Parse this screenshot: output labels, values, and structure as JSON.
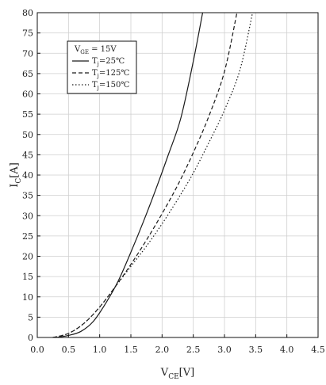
{
  "chart_data": {
    "type": "line",
    "title": "",
    "xlabel": {
      "main": "V",
      "sub": "CE",
      "unit": "[V]"
    },
    "ylabel": {
      "main": "I",
      "sub": "C",
      "unit": "[A]"
    },
    "xlim": [
      0,
      4.5
    ],
    "ylim": [
      0,
      80
    ],
    "x_ticks": [
      "0.0",
      "0.5",
      "1.0",
      "1.5",
      "2.0",
      "2.5",
      "3.0",
      "3.5",
      "4.0",
      "4.5"
    ],
    "y_ticks": [
      "0",
      "5",
      "10",
      "15",
      "20",
      "25",
      "30",
      "35",
      "40",
      "45",
      "50",
      "55",
      "60",
      "65",
      "70",
      "75",
      "80"
    ],
    "grid": true,
    "legend_position": "top-left",
    "legend_header": {
      "main": "V",
      "sub": "GE",
      "rest": " = 15V"
    },
    "series": [
      {
        "name": "Tj=25℃",
        "label": {
          "main": "T",
          "sub": "j",
          "rest": "=25℃"
        },
        "style": "solid",
        "color": "#1a1a1a",
        "points": [
          [
            0.3,
            0
          ],
          [
            0.5,
            0.5
          ],
          [
            0.7,
            1.5
          ],
          [
            0.9,
            4
          ],
          [
            1.1,
            8.5
          ],
          [
            1.3,
            14
          ],
          [
            1.5,
            21
          ],
          [
            1.7,
            28.5
          ],
          [
            1.9,
            36.5
          ],
          [
            2.1,
            45
          ],
          [
            2.3,
            54
          ],
          [
            2.5,
            68
          ],
          [
            2.65,
            80
          ]
        ]
      },
      {
        "name": "Tj=125℃",
        "label": {
          "main": "T",
          "sub": "j",
          "rest": "=125℃"
        },
        "style": "dashed",
        "color": "#1a1a1a",
        "points": [
          [
            0.25,
            0
          ],
          [
            0.5,
            1
          ],
          [
            0.75,
            3.5
          ],
          [
            1.0,
            7.5
          ],
          [
            1.25,
            12.5
          ],
          [
            1.5,
            18
          ],
          [
            1.75,
            24
          ],
          [
            2.0,
            30.5
          ],
          [
            2.25,
            37.5
          ],
          [
            2.5,
            45.5
          ],
          [
            2.75,
            54.5
          ],
          [
            3.0,
            65.5
          ],
          [
            3.2,
            80
          ]
        ]
      },
      {
        "name": "Tj=150℃",
        "label": {
          "main": "T",
          "sub": "j",
          "rest": "=150℃"
        },
        "style": "dotted",
        "color": "#1a1a1a",
        "points": [
          [
            0.25,
            0
          ],
          [
            0.5,
            1
          ],
          [
            0.75,
            3.5
          ],
          [
            1.0,
            7.5
          ],
          [
            1.25,
            12.5
          ],
          [
            1.5,
            17.5
          ],
          [
            1.75,
            22.5
          ],
          [
            2.0,
            28
          ],
          [
            2.25,
            34
          ],
          [
            2.5,
            40.5
          ],
          [
            2.75,
            48
          ],
          [
            3.0,
            56
          ],
          [
            3.25,
            66
          ],
          [
            3.45,
            80
          ]
        ]
      }
    ]
  }
}
